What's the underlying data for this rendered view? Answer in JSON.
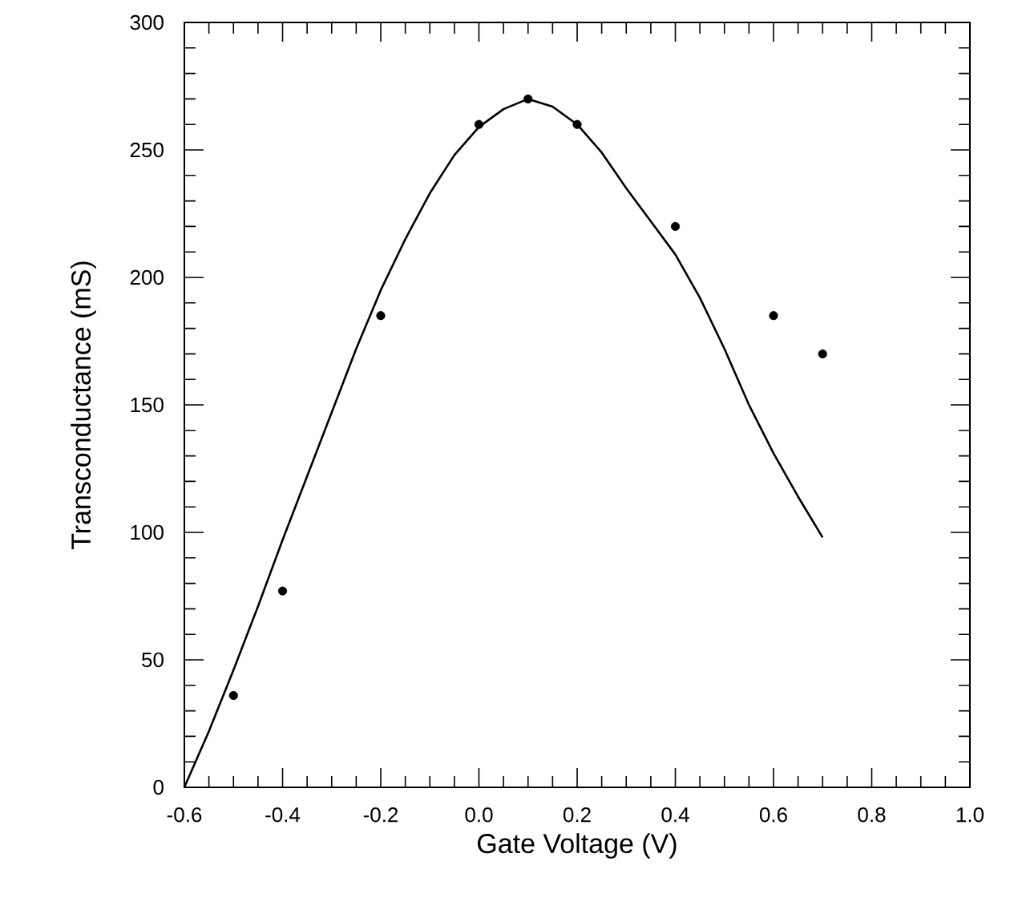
{
  "chart_data": {
    "type": "scatter",
    "xlabel": "Gate Voltage (V)",
    "ylabel": "Transconductance (mS)",
    "series": [
      {
        "color": "#000000",
        "marker": "circle",
        "x": [
          -0.5,
          -0.4,
          -0.2,
          0.0,
          0.1,
          0.2,
          0.4,
          0.6,
          0.7
        ],
        "values": [
          36,
          77,
          185,
          260,
          270,
          260,
          220,
          185,
          170
        ]
      },
      {
        "type": "line",
        "color": "#000000",
        "marker": "none",
        "line_style": "solid",
        "x": [
          -0.6,
          -0.55,
          -0.5,
          -0.45,
          -0.4,
          -0.35,
          -0.3,
          -0.25,
          -0.2,
          -0.15,
          -0.1,
          -0.05,
          0.0,
          0.05,
          0.1,
          0.15,
          0.2,
          0.25,
          0.3,
          0.35,
          0.4,
          0.45,
          0.5,
          0.55,
          0.6,
          0.65,
          0.7
        ],
        "values": [
          0,
          22,
          46,
          71,
          97,
          122,
          147,
          172,
          195,
          215,
          233,
          248,
          259,
          266,
          270,
          267,
          260,
          249,
          235,
          222,
          209,
          192,
          172,
          150,
          131,
          114,
          98
        ]
      }
    ],
    "xlim": [
      -0.6,
      1.0
    ],
    "ylim": [
      0,
      300
    ],
    "xticks": [
      {
        "value": -0.6,
        "label": "-0.6"
      },
      {
        "value": -0.4,
        "label": "-0.4"
      },
      {
        "value": -0.2,
        "label": "-0.2"
      },
      {
        "value": 0.0,
        "label": "0.0"
      },
      {
        "value": 0.2,
        "label": "0.2"
      },
      {
        "value": 0.4,
        "label": "0.4"
      },
      {
        "value": 0.6,
        "label": "0.6"
      },
      {
        "value": 0.8,
        "label": "0.8"
      },
      {
        "value": 1.0,
        "label": "1.0"
      }
    ],
    "yticks": [
      0,
      50,
      100,
      150,
      200,
      250,
      300
    ],
    "grid": false
  }
}
